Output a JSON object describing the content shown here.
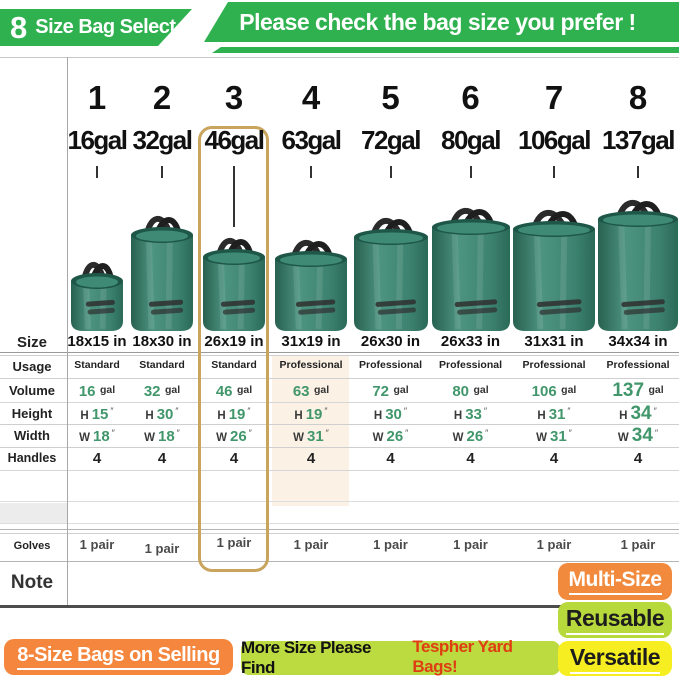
{
  "header": {
    "badge_number": "8",
    "badge_label": "Size Bag Select",
    "banner": "Please check the bag size you prefer !"
  },
  "row_labels": {
    "size": "Size",
    "usage": "Usage",
    "volume": "Volume",
    "height": "Height",
    "width": "Width",
    "handles": "Handles",
    "gloves": "Golves",
    "note": "Note"
  },
  "units": {
    "volume_unit": "gal",
    "inch_mark": "″",
    "height_prefix": "H",
    "width_prefix": "W"
  },
  "columns": [
    {
      "num": "1",
      "volume_label": "16gal",
      "size": "18x15 in",
      "usage": "Standard",
      "volume_gal": "16",
      "height_in": "15",
      "width_in": "18",
      "handles": "4",
      "gloves": "1 pair",
      "highlighted": false,
      "shaded": false,
      "emphasized": false
    },
    {
      "num": "2",
      "volume_label": "32gal",
      "size": "18x30 in",
      "usage": "Standard",
      "volume_gal": "32",
      "height_in": "30",
      "width_in": "18",
      "handles": "4",
      "gloves": "1 pair",
      "highlighted": false,
      "shaded": false,
      "emphasized": false
    },
    {
      "num": "3",
      "volume_label": "46gal",
      "size": "26x19 in",
      "usage": "Standard",
      "volume_gal": "46",
      "height_in": "19",
      "width_in": "26",
      "handles": "4",
      "gloves": "1 pair",
      "highlighted": true,
      "shaded": false,
      "emphasized": false
    },
    {
      "num": "4",
      "volume_label": "63gal",
      "size": "31x19 in",
      "usage": "Professional",
      "volume_gal": "63",
      "height_in": "19",
      "width_in": "31",
      "handles": "4",
      "gloves": "1 pair",
      "highlighted": false,
      "shaded": true,
      "emphasized": false
    },
    {
      "num": "5",
      "volume_label": "72gal",
      "size": "26x30 in",
      "usage": "Professional",
      "volume_gal": "72",
      "height_in": "30",
      "width_in": "26",
      "handles": "4",
      "gloves": "1 pair",
      "highlighted": false,
      "shaded": false,
      "emphasized": false
    },
    {
      "num": "6",
      "volume_label": "80gal",
      "size": "26x33 in",
      "usage": "Professional",
      "volume_gal": "80",
      "height_in": "33",
      "width_in": "26",
      "handles": "4",
      "gloves": "1 pair",
      "highlighted": false,
      "shaded": false,
      "emphasized": false
    },
    {
      "num": "7",
      "volume_label": "106gal",
      "size": "31x31 in",
      "usage": "Professional",
      "volume_gal": "106",
      "height_in": "31",
      "width_in": "31",
      "handles": "4",
      "gloves": "1 pair",
      "highlighted": false,
      "shaded": false,
      "emphasized": false
    },
    {
      "num": "8",
      "volume_label": "137gal",
      "size": "34x34 in",
      "usage": "Professional",
      "volume_gal": "137",
      "height_in": "34",
      "width_in": "34",
      "handles": "4",
      "gloves": "1 pair",
      "highlighted": false,
      "shaded": false,
      "emphasized": true
    }
  ],
  "footer": {
    "selling_button": "8-Size Bags on Selling",
    "more_text": "More Size Please Find",
    "more_brand": "Tespher Yard Bags!",
    "badges": [
      {
        "label": "Multi-Size",
        "color": "#f28a3d",
        "text_color": "#ffffff"
      },
      {
        "label": "Reusable",
        "color": "#b8d93c",
        "text_color": "#1d1d1d"
      },
      {
        "label": "Versatile",
        "color": "#f6ee20",
        "text_color": "#1d1d1d"
      }
    ]
  },
  "colors": {
    "banner_green": "#2fb14f",
    "number_green": "#41976b",
    "highlight_border": "#c8a45c",
    "shaded_column": "#fbf1e4",
    "bag_green": "#3b8371"
  }
}
